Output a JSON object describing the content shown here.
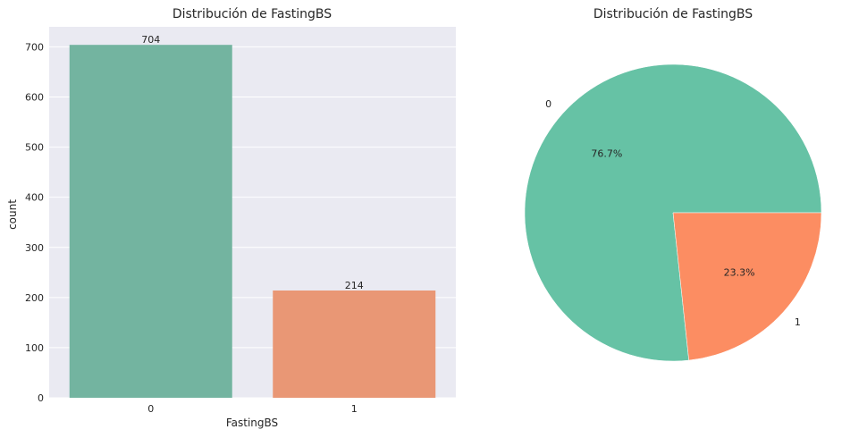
{
  "chart_data": [
    {
      "type": "bar",
      "title": "Distribución de FastingBS",
      "xlabel": "FastingBS",
      "ylabel": "count",
      "categories": [
        "0",
        "1"
      ],
      "values": [
        704,
        214
      ],
      "data_labels": [
        "704",
        "214"
      ],
      "ylim": [
        0,
        740
      ],
      "yticks": [
        0,
        100,
        200,
        300,
        400,
        500,
        600,
        700
      ],
      "grid": true,
      "colors": [
        "#73b4a0",
        "#e99775"
      ],
      "background": "#eaeaf2"
    },
    {
      "type": "pie",
      "title": "Distribución de FastingBS",
      "labels": [
        "0",
        "1"
      ],
      "values": [
        76.7,
        23.3
      ],
      "pct_labels": [
        "76.7%",
        "23.3%"
      ],
      "colors": [
        "#66c2a5",
        "#fc8d62"
      ]
    }
  ]
}
